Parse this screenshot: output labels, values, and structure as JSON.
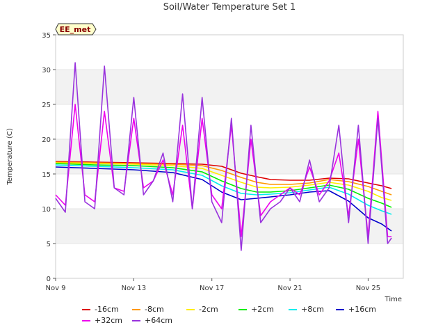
{
  "chart_data": {
    "type": "line",
    "title": "Soil/Water Temperature Set 1",
    "xlabel": "Time",
    "ylabel": "Temperature (C)",
    "badge": "EE_met",
    "xlim": [
      0,
      17.8
    ],
    "ylim": [
      0,
      35
    ],
    "x_ticks": [
      {
        "x": 0,
        "label": "Nov 9"
      },
      {
        "x": 4,
        "label": "Nov 13"
      },
      {
        "x": 8,
        "label": "Nov 17"
      },
      {
        "x": 12,
        "label": "Nov 21"
      },
      {
        "x": 16,
        "label": "Nov 25"
      }
    ],
    "y_ticks": [
      0,
      5,
      10,
      15,
      20,
      25,
      30,
      35
    ],
    "grid": "horizontal bands",
    "legend_position": "bottom",
    "series": [
      {
        "name": "-16cm",
        "color": "#dd0000",
        "x": [
          0,
          2,
          4,
          6,
          7.5,
          8.5,
          9.5,
          10.3,
          11,
          12,
          13,
          14,
          15,
          16,
          16.7,
          17.2
        ],
        "y": [
          16.8,
          16.7,
          16.6,
          16.5,
          16.4,
          16.1,
          15.1,
          14.6,
          14.2,
          14.1,
          14.1,
          14.4,
          14.3,
          13.7,
          13.3,
          12.9
        ]
      },
      {
        "name": "-8cm",
        "color": "#ff9900",
        "x": [
          0,
          2,
          4,
          6,
          7.5,
          8.5,
          9.5,
          10.3,
          11,
          12,
          13,
          14,
          15,
          16,
          16.7,
          17.2
        ],
        "y": [
          16.7,
          16.6,
          16.5,
          16.4,
          16.2,
          15.5,
          14.5,
          13.8,
          13.5,
          13.5,
          13.7,
          14.2,
          13.9,
          13.2,
          12.5,
          12.0
        ]
      },
      {
        "name": "-2cm",
        "color": "#ffee00",
        "x": [
          0,
          2,
          4,
          6,
          7.5,
          8.5,
          9.5,
          10.3,
          11,
          12,
          13,
          14,
          15,
          16,
          16.7,
          17.2
        ],
        "y": [
          16.6,
          16.5,
          16.4,
          16.2,
          15.8,
          14.8,
          13.8,
          13.1,
          13.0,
          13.1,
          13.4,
          13.8,
          13.4,
          12.5,
          11.6,
          11.2
        ]
      },
      {
        "name": "+2cm",
        "color": "#00ee00",
        "x": [
          0,
          2,
          4,
          6,
          7.5,
          8.5,
          9.5,
          10.3,
          11,
          12,
          13,
          14,
          15,
          16,
          16.7,
          17.2
        ],
        "y": [
          16.5,
          16.3,
          16.2,
          15.9,
          15.3,
          14.0,
          12.9,
          12.4,
          12.4,
          12.6,
          13.0,
          13.4,
          12.8,
          11.5,
          10.8,
          10.2
        ]
      },
      {
        "name": "+8cm",
        "color": "#00eeee",
        "x": [
          0,
          2,
          4,
          6,
          7.5,
          8.5,
          9.5,
          10.3,
          11,
          12,
          13,
          14,
          15,
          16,
          16.7,
          17.2
        ],
        "y": [
          16.3,
          16.1,
          15.9,
          15.6,
          14.8,
          13.3,
          12.2,
          12.0,
          12.1,
          12.3,
          12.7,
          13.1,
          12.1,
          10.5,
          9.7,
          9.2
        ]
      },
      {
        "name": "+16cm",
        "color": "#0000cc",
        "x": [
          0,
          2,
          4,
          6,
          7.5,
          8.5,
          9.5,
          10.3,
          11,
          12,
          13,
          14,
          15,
          16,
          16.7,
          17.2
        ],
        "y": [
          16.0,
          15.8,
          15.6,
          15.2,
          14.2,
          12.4,
          11.3,
          11.5,
          11.7,
          12.0,
          12.4,
          12.6,
          11.1,
          8.7,
          7.8,
          6.8
        ]
      },
      {
        "name": "+32cm",
        "color": "#ee00ee",
        "x": [
          0,
          0.5,
          1,
          1.5,
          2,
          2.5,
          3,
          3.5,
          4,
          4.5,
          5,
          5.5,
          6,
          6.5,
          7,
          7.5,
          8,
          8.5,
          9,
          9.5,
          10,
          10.5,
          11,
          11.5,
          12,
          12.5,
          13,
          13.5,
          14,
          14.5,
          15,
          15.5,
          16,
          16.5,
          17,
          17.2
        ],
        "y": [
          12,
          10.5,
          25,
          12,
          11,
          24,
          13,
          12.5,
          23,
          13,
          14,
          17,
          12,
          22,
          10,
          23,
          12,
          10,
          22,
          6,
          20,
          9,
          11,
          12,
          13,
          12,
          16,
          12,
          14,
          18,
          9,
          20,
          6,
          24,
          6,
          6
        ]
      },
      {
        "name": "+64cm",
        "color": "#9933dd",
        "x": [
          0,
          0.5,
          1,
          1.5,
          2,
          2.5,
          3,
          3.5,
          4,
          4.5,
          5,
          5.5,
          6,
          6.5,
          7,
          7.5,
          8,
          8.5,
          9,
          9.5,
          10,
          10.5,
          11,
          11.5,
          12,
          12.5,
          13,
          13.5,
          14,
          14.5,
          15,
          15.5,
          16,
          16.5,
          17,
          17.2
        ],
        "y": [
          11.5,
          9.5,
          31,
          11,
          10,
          30.5,
          13,
          12,
          26,
          12,
          14,
          18,
          11,
          26.5,
          10,
          26,
          11,
          8,
          23,
          4,
          22,
          8,
          10,
          11,
          13,
          11,
          17,
          11,
          13,
          22,
          8,
          22,
          5,
          23,
          5,
          5.8
        ]
      }
    ]
  }
}
